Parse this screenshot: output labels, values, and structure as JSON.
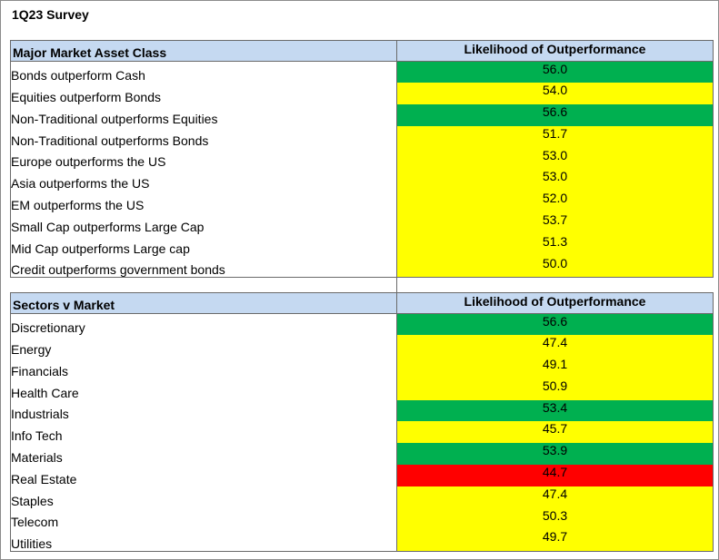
{
  "title": "1Q23 Survey",
  "colors": {
    "header": "#c5d9f1",
    "green": "#00b050",
    "yellow": "#ffff00",
    "red": "#ff0000"
  },
  "asset_class": {
    "header_label": "Major Market Asset Class",
    "header_value": "Likelihood of Outperformance",
    "rows": [
      {
        "label": "Bonds outperform Cash",
        "value": "56.0",
        "color": "green"
      },
      {
        "label": "Equities outperform Bonds",
        "value": "54.0",
        "color": "yellow"
      },
      {
        "label": "Non-Traditional outperforms Equities",
        "value": "56.6",
        "color": "green"
      },
      {
        "label": "Non-Traditional outperforms Bonds",
        "value": "51.7",
        "color": "yellow"
      },
      {
        "label": "Europe outperforms the US",
        "value": "53.0",
        "color": "yellow"
      },
      {
        "label": "Asia outperforms the US",
        "value": "53.0",
        "color": "yellow"
      },
      {
        "label": "EM outperforms the US",
        "value": "52.0",
        "color": "yellow"
      },
      {
        "label": "Small Cap outperforms Large Cap",
        "value": "53.7",
        "color": "yellow"
      },
      {
        "label": "Mid Cap outperforms Large cap",
        "value": "51.3",
        "color": "yellow"
      },
      {
        "label": "Credit outperforms government bonds",
        "value": "50.0",
        "color": "yellow"
      }
    ]
  },
  "sectors": {
    "header_label": "Sectors v Market",
    "header_value": "Likelihood of Outperformance",
    "rows": [
      {
        "label": "Discretionary",
        "value": "56.6",
        "color": "green"
      },
      {
        "label": "Energy",
        "value": "47.4",
        "color": "yellow"
      },
      {
        "label": "Financials",
        "value": "49.1",
        "color": "yellow"
      },
      {
        "label": "Health Care",
        "value": "50.9",
        "color": "yellow"
      },
      {
        "label": "Industrials",
        "value": "53.4",
        "color": "green"
      },
      {
        "label": "Info Tech",
        "value": "45.7",
        "color": "yellow"
      },
      {
        "label": "Materials",
        "value": "53.9",
        "color": "green"
      },
      {
        "label": "Real Estate",
        "value": "44.7",
        "color": "red"
      },
      {
        "label": "Staples",
        "value": "47.4",
        "color": "yellow"
      },
      {
        "label": "Telecom",
        "value": "50.3",
        "color": "yellow"
      },
      {
        "label": "Utilities",
        "value": "49.7",
        "color": "yellow"
      }
    ]
  }
}
